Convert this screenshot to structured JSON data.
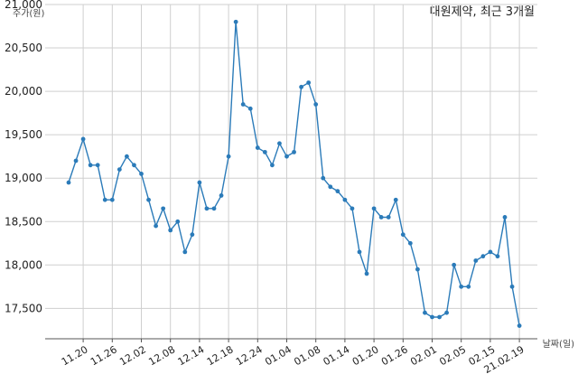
{
  "chart_data": {
    "type": "line",
    "title": "대원제약, 최근 3개월",
    "xlabel": "날짜(일)",
    "ylabel": "주가(원)",
    "ylim": [
      17150,
      21000
    ],
    "grid": true,
    "line_color": "#2b7bb9",
    "yticks": [
      17500,
      18000,
      18500,
      19000,
      19500,
      20000,
      20500,
      21000
    ],
    "ytick_labels": [
      "17,500",
      "18,000",
      "18,500",
      "19,000",
      "19,500",
      "20,000",
      "20,500",
      "21,000"
    ],
    "xtick_labels": [
      "11.20",
      "11.26",
      "12.02",
      "12.08",
      "12.14",
      "12.18",
      "12.24",
      "01.04",
      "01.08",
      "01.14",
      "01.20",
      "01.26",
      "02.01",
      "02.05",
      "02.15",
      "21.02.19"
    ],
    "xtick_at": [
      2,
      6,
      10,
      14,
      18,
      22,
      26,
      30,
      34,
      38,
      42,
      46,
      50,
      54,
      58,
      62
    ],
    "values": [
      18950,
      19200,
      19450,
      19150,
      19150,
      18750,
      18750,
      19100,
      19250,
      19150,
      19050,
      18750,
      18450,
      18650,
      18400,
      18500,
      18150,
      18350,
      18950,
      18650,
      18650,
      18800,
      19250,
      20800,
      19850,
      19800,
      19350,
      19300,
      19150,
      19400,
      19250,
      19300,
      20050,
      20100,
      19850,
      19000,
      18900,
      18850,
      18750,
      18650,
      18150,
      17900,
      18650,
      18550,
      18550,
      18750,
      18350,
      18250,
      17950,
      17450,
      17400,
      17400,
      17450,
      18000,
      17750,
      17750,
      18050,
      18100,
      18150,
      18100,
      18550,
      17750,
      17300
    ]
  }
}
